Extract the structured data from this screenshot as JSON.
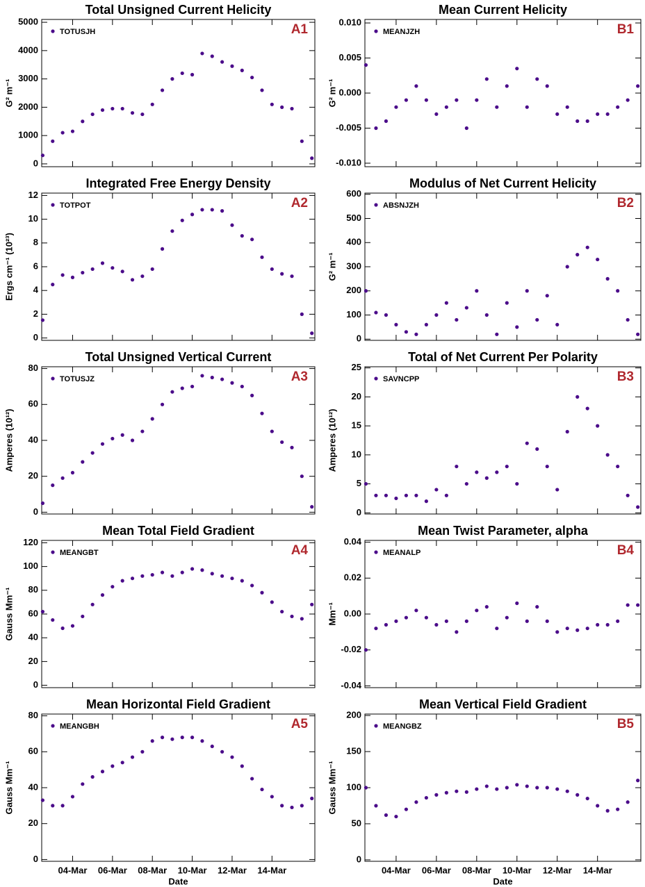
{
  "chart_data": [
    {
      "type": "scatter",
      "title": "Total Unsigned Current Helicity",
      "panel_label": "A1",
      "ylabel": "G² m⁻¹",
      "x": [
        2.5,
        3,
        3.5,
        4,
        4.5,
        5,
        5.5,
        6,
        6.5,
        7,
        7.5,
        8,
        8.5,
        9,
        9.5,
        10,
        10.5,
        11,
        11.5,
        12,
        12.5,
        13,
        13.5,
        14,
        14.5,
        15,
        15.5,
        16
      ],
      "series": [
        {
          "name": "TOTUSJH",
          "color": "#4b0c8a",
          "values": [
            300,
            800,
            1100,
            1150,
            1500,
            1750,
            1900,
            1950,
            1950,
            1800,
            1750,
            2100,
            2600,
            3000,
            3200,
            3150,
            3900,
            3800,
            3600,
            3450,
            3300,
            3050,
            2600,
            2100,
            2000,
            1950,
            800,
            200
          ]
        }
      ],
      "xlim": [
        2.45,
        16.15
      ],
      "xticks": [
        4,
        6,
        8,
        10,
        12,
        14
      ],
      "ylim": [
        -100,
        5100
      ],
      "yticks": [
        0,
        1000,
        2000,
        3000,
        4000,
        5000
      ]
    },
    {
      "type": "scatter",
      "title": "Mean Current Helicity",
      "panel_label": "B1",
      "ylabel": "G² m⁻¹",
      "x": [
        2.5,
        3,
        3.5,
        4,
        4.5,
        5,
        5.5,
        6,
        6.5,
        7,
        7.5,
        8,
        8.5,
        9,
        9.5,
        10,
        10.5,
        11,
        11.5,
        12,
        12.5,
        13,
        13.5,
        14,
        14.5,
        15,
        15.5,
        16
      ],
      "series": [
        {
          "name": "MEANJZH",
          "color": "#4b0c8a",
          "values": [
            0.004,
            -0.005,
            -0.004,
            -0.002,
            -0.001,
            0.001,
            -0.001,
            -0.003,
            -0.002,
            -0.001,
            -0.005,
            -0.001,
            0.002,
            -0.002,
            0.001,
            0.0035,
            -0.002,
            0.002,
            0.001,
            -0.003,
            -0.002,
            -0.004,
            -0.004,
            -0.003,
            -0.003,
            -0.002,
            -0.001,
            0.001
          ]
        }
      ],
      "xlim": [
        2.45,
        16.15
      ],
      "xticks": [
        4,
        6,
        8,
        10,
        12,
        14
      ],
      "ylim": [
        -0.0105,
        0.0105
      ],
      "yticks": [
        {
          "value": -0.01,
          "label": "-0.010"
        },
        {
          "value": -0.005,
          "label": "-0.005"
        },
        {
          "value": 0,
          "label": "0.000"
        },
        {
          "value": 0.005,
          "label": "0.005"
        },
        {
          "value": 0.01,
          "label": "0.010"
        }
      ]
    },
    {
      "type": "scatter",
      "title": "Integrated Free Energy Density",
      "panel_label": "A2",
      "ylabel": "Ergs cm⁻¹ (10²³)",
      "x": [
        2.5,
        3,
        3.5,
        4,
        4.5,
        5,
        5.5,
        6,
        6.5,
        7,
        7.5,
        8,
        8.5,
        9,
        9.5,
        10,
        10.5,
        11,
        11.5,
        12,
        12.5,
        13,
        13.5,
        14,
        14.5,
        15,
        15.5,
        16
      ],
      "series": [
        {
          "name": "TOTPOT",
          "color": "#4b0c8a",
          "values": [
            1.5,
            4.5,
            5.3,
            5.1,
            5.5,
            5.8,
            6.3,
            5.9,
            5.6,
            4.9,
            5.2,
            5.8,
            7.5,
            9.0,
            9.9,
            10.4,
            10.8,
            10.8,
            10.7,
            9.5,
            8.6,
            8.3,
            6.8,
            5.8,
            5.4,
            5.2,
            2.0,
            0.4
          ]
        }
      ],
      "xlim": [
        2.45,
        16.15
      ],
      "xticks": [
        4,
        6,
        8,
        10,
        12,
        14
      ],
      "ylim": [
        -0.2,
        12.2
      ],
      "yticks": [
        0,
        2,
        4,
        6,
        8,
        10,
        12
      ]
    },
    {
      "type": "scatter",
      "title": "Modulus of Net Current Helicity",
      "panel_label": "B2",
      "ylabel": "G² m⁻¹",
      "x": [
        2.5,
        3,
        3.5,
        4,
        4.5,
        5,
        5.5,
        6,
        6.5,
        7,
        7.5,
        8,
        8.5,
        9,
        9.5,
        10,
        10.5,
        11,
        11.5,
        12,
        12.5,
        13,
        13.5,
        14,
        14.5,
        15,
        15.5,
        16
      ],
      "series": [
        {
          "name": "ABSNJZH",
          "color": "#4b0c8a",
          "values": [
            200,
            110,
            100,
            60,
            30,
            20,
            60,
            100,
            150,
            80,
            130,
            200,
            100,
            20,
            150,
            50,
            200,
            80,
            180,
            60,
            300,
            350,
            380,
            330,
            250,
            200,
            80,
            20
          ]
        }
      ],
      "xlim": [
        2.45,
        16.15
      ],
      "xticks": [
        4,
        6,
        8,
        10,
        12,
        14
      ],
      "ylim": [
        -5,
        605
      ],
      "yticks": [
        0,
        100,
        200,
        300,
        400,
        500,
        600
      ]
    },
    {
      "type": "scatter",
      "title": "Total Unsigned Vertical Current",
      "panel_label": "A3",
      "ylabel": "Amperes (10¹²)",
      "x": [
        2.5,
        3,
        3.5,
        4,
        4.5,
        5,
        5.5,
        6,
        6.5,
        7,
        7.5,
        8,
        8.5,
        9,
        9.5,
        10,
        10.5,
        11,
        11.5,
        12,
        12.5,
        13,
        13.5,
        14,
        14.5,
        15,
        15.5,
        16
      ],
      "series": [
        {
          "name": "TOTUSJZ",
          "color": "#4b0c8a",
          "values": [
            5,
            15,
            19,
            22,
            28,
            33,
            38,
            41,
            43,
            40,
            45,
            52,
            60,
            67,
            69,
            70,
            76,
            75,
            74,
            72,
            70,
            65,
            55,
            45,
            39,
            36,
            20,
            3
          ]
        }
      ],
      "xlim": [
        2.45,
        16.15
      ],
      "xticks": [
        4,
        6,
        8,
        10,
        12,
        14
      ],
      "ylim": [
        -1,
        81
      ],
      "yticks": [
        0,
        20,
        40,
        60,
        80
      ]
    },
    {
      "type": "scatter",
      "title": "Total of Net Current Per Polarity",
      "panel_label": "B3",
      "ylabel": "Amperes (10¹²)",
      "x": [
        2.5,
        3,
        3.5,
        4,
        4.5,
        5,
        5.5,
        6,
        6.5,
        7,
        7.5,
        8,
        8.5,
        9,
        9.5,
        10,
        10.5,
        11,
        11.5,
        12,
        12.5,
        13,
        13.5,
        14,
        14.5,
        15,
        15.5,
        16
      ],
      "series": [
        {
          "name": "SAVNCPP",
          "color": "#4b0c8a",
          "values": [
            5,
            3,
            3,
            2.5,
            3,
            3,
            2,
            4,
            3,
            8,
            5,
            7,
            6,
            7,
            8,
            5,
            12,
            11,
            8,
            4,
            14,
            20,
            18,
            15,
            10,
            8,
            3,
            1
          ]
        }
      ],
      "xlim": [
        2.45,
        16.15
      ],
      "xticks": [
        4,
        6,
        8,
        10,
        12,
        14
      ],
      "ylim": [
        -0.2,
        25.2
      ],
      "yticks": [
        0,
        5,
        10,
        15,
        20,
        25
      ]
    },
    {
      "type": "scatter",
      "title": "Mean Total Field Gradient",
      "panel_label": "A4",
      "ylabel": "Gauss Mm⁻¹",
      "x": [
        2.5,
        3,
        3.5,
        4,
        4.5,
        5,
        5.5,
        6,
        6.5,
        7,
        7.5,
        8,
        8.5,
        9,
        9.5,
        10,
        10.5,
        11,
        11.5,
        12,
        12.5,
        13,
        13.5,
        14,
        14.5,
        15,
        15.5,
        16
      ],
      "series": [
        {
          "name": "MEANGBT",
          "color": "#4b0c8a",
          "values": [
            62,
            55,
            48,
            50,
            58,
            68,
            76,
            83,
            88,
            90,
            92,
            93,
            95,
            92,
            95,
            98,
            97,
            94,
            92,
            90,
            88,
            84,
            78,
            70,
            62,
            58,
            56,
            68
          ]
        }
      ],
      "xlim": [
        2.45,
        16.15
      ],
      "xticks": [
        4,
        6,
        8,
        10,
        12,
        14
      ],
      "ylim": [
        -2,
        122
      ],
      "yticks": [
        0,
        20,
        40,
        60,
        80,
        100,
        120
      ]
    },
    {
      "type": "scatter",
      "title": "Mean Twist Parameter, alpha",
      "panel_label": "B4",
      "ylabel": "Mm⁻¹",
      "x": [
        2.5,
        3,
        3.5,
        4,
        4.5,
        5,
        5.5,
        6,
        6.5,
        7,
        7.5,
        8,
        8.5,
        9,
        9.5,
        10,
        10.5,
        11,
        11.5,
        12,
        12.5,
        13,
        13.5,
        14,
        14.5,
        15,
        15.5,
        16
      ],
      "series": [
        {
          "name": "MEANALP",
          "color": "#4b0c8a",
          "values": [
            -0.02,
            -0.008,
            -0.006,
            -0.004,
            -0.002,
            0.002,
            -0.002,
            -0.006,
            -0.004,
            -0.01,
            -0.004,
            0.002,
            0.004,
            -0.008,
            -0.002,
            0.006,
            -0.004,
            0.004,
            -0.004,
            -0.01,
            -0.008,
            -0.009,
            -0.008,
            -0.006,
            -0.006,
            -0.004,
            0.005,
            0.005
          ]
        }
      ],
      "xlim": [
        2.45,
        16.15
      ],
      "xticks": [
        4,
        6,
        8,
        10,
        12,
        14
      ],
      "ylim": [
        -0.041,
        0.041
      ],
      "yticks": [
        {
          "value": -0.04,
          "label": "-0.04"
        },
        {
          "value": -0.02,
          "label": "-0.02"
        },
        {
          "value": 0,
          "label": "0.00"
        },
        {
          "value": 0.02,
          "label": "0.02"
        },
        {
          "value": 0.04,
          "label": "0.04"
        }
      ]
    },
    {
      "type": "scatter",
      "title": "Mean Horizontal Field Gradient",
      "panel_label": "A5",
      "ylabel": "Gauss Mm⁻¹",
      "xlabel": "Date",
      "x": [
        2.5,
        3,
        3.5,
        4,
        4.5,
        5,
        5.5,
        6,
        6.5,
        7,
        7.5,
        8,
        8.5,
        9,
        9.5,
        10,
        10.5,
        11,
        11.5,
        12,
        12.5,
        13,
        13.5,
        14,
        14.5,
        15,
        15.5,
        16
      ],
      "series": [
        {
          "name": "MEANGBH",
          "color": "#4b0c8a",
          "values": [
            33,
            30,
            30,
            35,
            42,
            46,
            49,
            52,
            54,
            57,
            60,
            66,
            68,
            67,
            68,
            68,
            66,
            63,
            60,
            57,
            52,
            45,
            39,
            35,
            30,
            29,
            30,
            34
          ]
        }
      ],
      "xlim": [
        2.45,
        16.15
      ],
      "xticks": [
        {
          "value": 4,
          "label": "04-Mar"
        },
        {
          "value": 6,
          "label": "06-Mar"
        },
        {
          "value": 8,
          "label": "08-Mar"
        },
        {
          "value": 10,
          "label": "10-Mar"
        },
        {
          "value": 12,
          "label": "12-Mar"
        },
        {
          "value": 14,
          "label": "14-Mar"
        }
      ],
      "ylim": [
        -1,
        81
      ],
      "yticks": [
        0,
        20,
        40,
        60,
        80
      ]
    },
    {
      "type": "scatter",
      "title": "Mean Vertical Field Gradient",
      "panel_label": "B5",
      "ylabel": "Gauss Mm⁻¹",
      "xlabel": "Date",
      "x": [
        2.5,
        3,
        3.5,
        4,
        4.5,
        5,
        5.5,
        6,
        6.5,
        7,
        7.5,
        8,
        8.5,
        9,
        9.5,
        10,
        10.5,
        11,
        11.5,
        12,
        12.5,
        13,
        13.5,
        14,
        14.5,
        15,
        15.5,
        16
      ],
      "series": [
        {
          "name": "MEANGBZ",
          "color": "#4b0c8a",
          "values": [
            100,
            75,
            62,
            60,
            70,
            80,
            86,
            90,
            93,
            95,
            94,
            98,
            102,
            98,
            100,
            104,
            102,
            100,
            100,
            98,
            95,
            90,
            85,
            75,
            68,
            70,
            80,
            110
          ]
        }
      ],
      "xlim": [
        2.45,
        16.15
      ],
      "xticks": [
        {
          "value": 4,
          "label": "04-Mar"
        },
        {
          "value": 6,
          "label": "06-Mar"
        },
        {
          "value": 8,
          "label": "08-Mar"
        },
        {
          "value": 10,
          "label": "10-Mar"
        },
        {
          "value": 12,
          "label": "12-Mar"
        },
        {
          "value": 14,
          "label": "14-Mar"
        }
      ],
      "ylim": [
        -2,
        202
      ],
      "yticks": [
        0,
        50,
        100,
        150,
        200
      ]
    }
  ]
}
